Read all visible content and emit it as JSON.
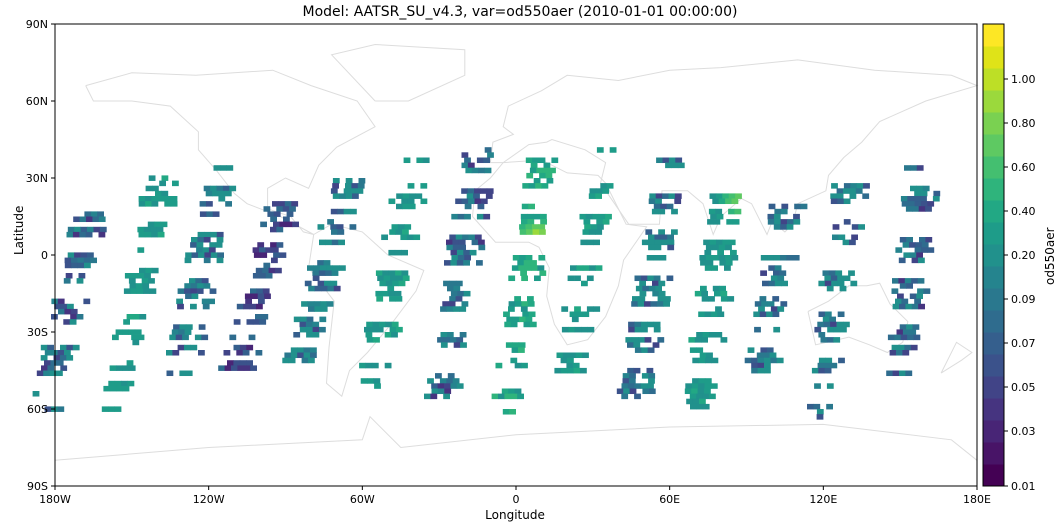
{
  "title": "Model: AATSR_SU_v4.3, var=od550aer (2010-01-01 00:00:00)",
  "xlabel": "Longitude",
  "ylabel": "Latitude",
  "colorbar": {
    "label": "od550aer",
    "ticks": [
      "0.01",
      "0.03",
      "0.05",
      "0.07",
      "0.09",
      "0.20",
      "0.40",
      "0.60",
      "0.80",
      "1.00"
    ],
    "bin_colors": [
      "#440154",
      "#481467",
      "#482576",
      "#463480",
      "#414487",
      "#3b528b",
      "#355f8d",
      "#2f6c8e",
      "#2a788e",
      "#25848e",
      "#21918c",
      "#1e9c89",
      "#22a884",
      "#2fb47c",
      "#44bf70",
      "#5ec962",
      "#7ad151",
      "#9bd93c",
      "#bddf26",
      "#dfe318",
      "#fde725"
    ]
  },
  "xticks": [
    "180W",
    "120W",
    "60W",
    "0",
    "60E",
    "120E",
    "180E"
  ],
  "yticks": [
    "90N",
    "60N",
    "30N",
    "0",
    "30S",
    "60S",
    "90S"
  ],
  "chart_data": {
    "type": "heatmap",
    "title": "Model: AATSR_SU_v4.3, var=od550aer (2010-01-01 00:00:00)",
    "xlabel": "Longitude",
    "ylabel": "Latitude",
    "xlim": [
      -180,
      180
    ],
    "ylim": [
      -90,
      90
    ],
    "swaths": [
      {
        "lon_top": -165,
        "lon_bottom": -185,
        "lat_top": 25,
        "lat_bottom": -60,
        "value": 0.07
      },
      {
        "lon_top": -138,
        "lon_bottom": -158,
        "lat_top": 35,
        "lat_bottom": -60,
        "value": 0.2
      },
      {
        "lon_top": -115,
        "lon_bottom": -132,
        "lat_top": 35,
        "lat_bottom": -45,
        "value": 0.09
      },
      {
        "lon_top": -90,
        "lon_bottom": -110,
        "lat_top": 25,
        "lat_bottom": -45,
        "value": 0.05
      },
      {
        "lon_top": -65,
        "lon_bottom": -85,
        "lat_top": 32,
        "lat_bottom": -40,
        "value": 0.09
      },
      {
        "lon_top": -40,
        "lon_bottom": -58,
        "lat_top": 38,
        "lat_bottom": -55,
        "value": 0.2
      },
      {
        "lon_top": -15,
        "lon_bottom": -30,
        "lat_top": 42,
        "lat_bottom": -55,
        "value": 0.07
      },
      {
        "lon_top": 10,
        "lon_bottom": -5,
        "lat_top": 42,
        "lat_bottom": -65,
        "value": 0.3
      },
      {
        "lon_top": 35,
        "lon_bottom": 20,
        "lat_top": 42,
        "lat_bottom": -45,
        "value": 0.2
      },
      {
        "lon_top": 60,
        "lon_bottom": 45,
        "lat_top": 38,
        "lat_bottom": -60,
        "value": 0.09
      },
      {
        "lon_top": 82,
        "lon_bottom": 70,
        "lat_top": 28,
        "lat_bottom": -65,
        "value": 0.2
      },
      {
        "lon_top": 105,
        "lon_bottom": 95,
        "lat_top": 20,
        "lat_bottom": -45,
        "value": 0.09
      },
      {
        "lon_top": 130,
        "lon_bottom": 118,
        "lat_top": 30,
        "lat_bottom": -62,
        "value": 0.09
      },
      {
        "lon_top": 158,
        "lon_bottom": 150,
        "lat_top": 35,
        "lat_bottom": -45,
        "value": 0.07
      }
    ],
    "hotspots": [
      {
        "lon": 86,
        "lat": 22,
        "value": 0.8
      },
      {
        "lon": 7,
        "lat": 8,
        "value": 1.0
      },
      {
        "lon": 137,
        "lat": -25,
        "value": 0.6
      }
    ]
  }
}
